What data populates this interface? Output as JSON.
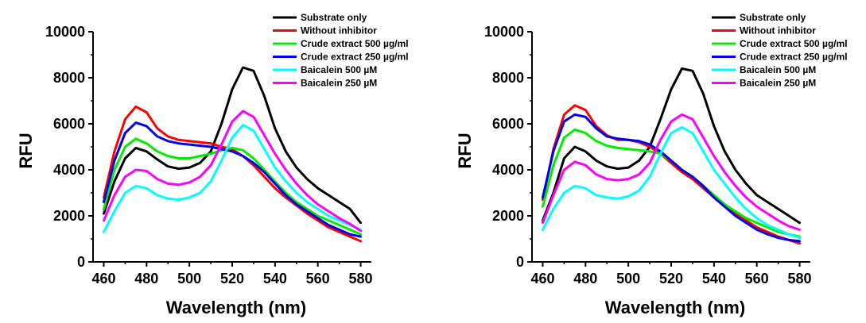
{
  "chart_data": [
    {
      "type": "line",
      "xlabel": "Wavelength (nm)",
      "ylabel": "RFU",
      "xlim": [
        455,
        585
      ],
      "ylim": [
        0,
        10000
      ],
      "xticks": [
        "460",
        "480",
        "500",
        "520",
        "540",
        "560",
        "580"
      ],
      "yticks": [
        "0",
        "2000",
        "4000",
        "6000",
        "8000",
        "10000"
      ],
      "grid": false,
      "legend_position": "top-right",
      "x": [
        460,
        465,
        470,
        475,
        480,
        485,
        490,
        495,
        500,
        505,
        510,
        515,
        520,
        525,
        530,
        535,
        540,
        545,
        550,
        555,
        560,
        565,
        570,
        575,
        580
      ],
      "series": [
        {
          "name": "Substrate only",
          "color": "#000000",
          "values": [
            2100,
            3500,
            4500,
            4950,
            4800,
            4450,
            4150,
            4050,
            4100,
            4300,
            4800,
            6000,
            7500,
            8450,
            8300,
            7200,
            5800,
            4800,
            4100,
            3600,
            3200,
            2900,
            2600,
            2300,
            1700
          ]
        },
        {
          "name": "Without inhibitor",
          "color": "#ff0000",
          "values": [
            2800,
            4800,
            6200,
            6750,
            6500,
            5800,
            5450,
            5300,
            5250,
            5200,
            5150,
            5000,
            4900,
            4600,
            4200,
            3700,
            3200,
            2800,
            2450,
            2100,
            1800,
            1500,
            1300,
            1100,
            900
          ]
        },
        {
          "name": "Crude extract 500 µg/ml",
          "color": "#00ee00",
          "values": [
            2300,
            4000,
            5000,
            5350,
            5150,
            4800,
            4600,
            4500,
            4500,
            4600,
            4700,
            4850,
            4950,
            4850,
            4500,
            4000,
            3500,
            3000,
            2600,
            2300,
            2000,
            1800,
            1600,
            1400,
            1200
          ]
        },
        {
          "name": "Crude extract 250 µg/ml",
          "color": "#0000ee",
          "values": [
            2600,
            4400,
            5600,
            6050,
            5900,
            5450,
            5250,
            5150,
            5100,
            5050,
            5000,
            4900,
            4800,
            4600,
            4300,
            3900,
            3400,
            2900,
            2500,
            2200,
            1900,
            1600,
            1400,
            1200,
            1100
          ]
        },
        {
          "name": "Baicalein 500 µM",
          "color": "#00ffff",
          "values": [
            1300,
            2200,
            3000,
            3300,
            3200,
            2900,
            2750,
            2700,
            2800,
            3000,
            3500,
            4400,
            5400,
            5950,
            5700,
            4900,
            4100,
            3500,
            3000,
            2600,
            2300,
            2000,
            1800,
            1600,
            1400
          ]
        },
        {
          "name": "Baicalein 250 µM",
          "color": "#ff00ff",
          "values": [
            1800,
            2900,
            3700,
            4000,
            3950,
            3600,
            3400,
            3350,
            3450,
            3700,
            4200,
            5100,
            6100,
            6550,
            6300,
            5500,
            4700,
            4000,
            3400,
            2900,
            2500,
            2200,
            1900,
            1650,
            1350
          ]
        }
      ]
    },
    {
      "type": "line",
      "xlabel": "Wavelength (nm)",
      "ylabel": "RFU",
      "xlim": [
        455,
        585
      ],
      "ylim": [
        0,
        10000
      ],
      "xticks": [
        "460",
        "480",
        "500",
        "520",
        "540",
        "560",
        "580"
      ],
      "yticks": [
        "0",
        "2000",
        "4000",
        "6000",
        "8000",
        "10000"
      ],
      "grid": false,
      "legend_position": "top-right",
      "x": [
        460,
        465,
        470,
        475,
        480,
        485,
        490,
        495,
        500,
        505,
        510,
        515,
        520,
        525,
        530,
        535,
        540,
        545,
        550,
        555,
        560,
        565,
        570,
        575,
        580
      ],
      "series": [
        {
          "name": "Substrate only",
          "color": "#000000",
          "values": [
            1800,
            3000,
            4500,
            5000,
            4800,
            4400,
            4150,
            4050,
            4100,
            4400,
            5000,
            6200,
            7500,
            8400,
            8300,
            7300,
            5900,
            4800,
            4000,
            3400,
            2900,
            2600,
            2300,
            2000,
            1700
          ]
        },
        {
          "name": "Without inhibitor",
          "color": "#ff0000",
          "values": [
            2700,
            4900,
            6400,
            6800,
            6600,
            5900,
            5500,
            5300,
            5300,
            5200,
            5000,
            4700,
            4300,
            3900,
            3600,
            3200,
            2800,
            2400,
            2100,
            1800,
            1500,
            1300,
            1100,
            950,
            800
          ]
        },
        {
          "name": "Crude extract 500 µg/ml",
          "color": "#00ee00",
          "values": [
            2400,
            4200,
            5400,
            5750,
            5600,
            5250,
            5050,
            4950,
            4900,
            4850,
            4800,
            4700,
            4400,
            4000,
            3700,
            3300,
            2900,
            2500,
            2200,
            1900,
            1700,
            1500,
            1300,
            1200,
            1100
          ]
        },
        {
          "name": "Crude extract 250 µg/ml",
          "color": "#0000ee",
          "values": [
            2800,
            4800,
            6100,
            6400,
            6300,
            5800,
            5450,
            5350,
            5300,
            5250,
            5100,
            4800,
            4400,
            4000,
            3700,
            3300,
            2800,
            2400,
            2000,
            1700,
            1400,
            1200,
            1050,
            950,
            900
          ]
        },
        {
          "name": "Baicalein 500 µM",
          "color": "#00ffff",
          "values": [
            1400,
            2300,
            3000,
            3300,
            3200,
            2900,
            2800,
            2750,
            2850,
            3100,
            3700,
            4700,
            5600,
            5850,
            5600,
            4800,
            4000,
            3400,
            2800,
            2300,
            1900,
            1600,
            1400,
            1200,
            1050
          ]
        },
        {
          "name": "Baicalein 250 µM",
          "color": "#ff00ff",
          "values": [
            1700,
            2900,
            4000,
            4350,
            4200,
            3800,
            3600,
            3550,
            3600,
            3800,
            4300,
            5300,
            6100,
            6400,
            6200,
            5400,
            4600,
            3900,
            3300,
            2800,
            2400,
            2100,
            1800,
            1550,
            1400
          ]
        }
      ]
    }
  ]
}
